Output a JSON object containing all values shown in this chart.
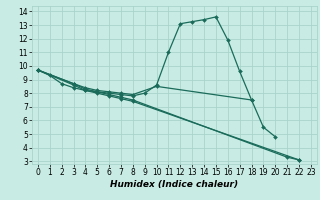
{
  "title": "",
  "xlabel": "Humidex (Indice chaleur)",
  "ylabel": "",
  "bg_color": "#c8ece4",
  "grid_color": "#a8d4cc",
  "line_color": "#1a6b5a",
  "xlim": [
    -0.5,
    23.5
  ],
  "ylim": [
    2.8,
    14.4
  ],
  "xticks": [
    0,
    1,
    2,
    3,
    4,
    5,
    6,
    7,
    8,
    9,
    10,
    11,
    12,
    13,
    14,
    15,
    16,
    17,
    18,
    19,
    20,
    21,
    22,
    23
  ],
  "yticks": [
    3,
    4,
    5,
    6,
    7,
    8,
    9,
    10,
    11,
    12,
    13,
    14
  ],
  "lines": [
    {
      "x": [
        0,
        1,
        2,
        3,
        4,
        5,
        6,
        7,
        8,
        9,
        10,
        11,
        12,
        13,
        14,
        15,
        16,
        17,
        18
      ],
      "y": [
        9.7,
        9.3,
        8.7,
        8.4,
        8.2,
        8.1,
        8.0,
        7.9,
        7.8,
        8.0,
        8.6,
        11.0,
        13.1,
        13.25,
        13.4,
        13.6,
        11.9,
        9.6,
        7.5
      ]
    },
    {
      "x": [
        0,
        3,
        4,
        5,
        6,
        7,
        8,
        10,
        18,
        19,
        20
      ],
      "y": [
        9.7,
        8.7,
        8.4,
        8.2,
        8.1,
        8.0,
        7.9,
        8.5,
        7.5,
        5.5,
        4.8
      ]
    },
    {
      "x": [
        0,
        3,
        4,
        5,
        6,
        7,
        8,
        21,
        22
      ],
      "y": [
        9.7,
        8.7,
        8.3,
        8.1,
        7.9,
        7.7,
        7.5,
        3.3,
        3.1
      ]
    },
    {
      "x": [
        0,
        3,
        4,
        5,
        6,
        7,
        8,
        22
      ],
      "y": [
        9.7,
        8.6,
        8.2,
        8.0,
        7.8,
        7.6,
        7.4,
        3.1
      ]
    }
  ]
}
